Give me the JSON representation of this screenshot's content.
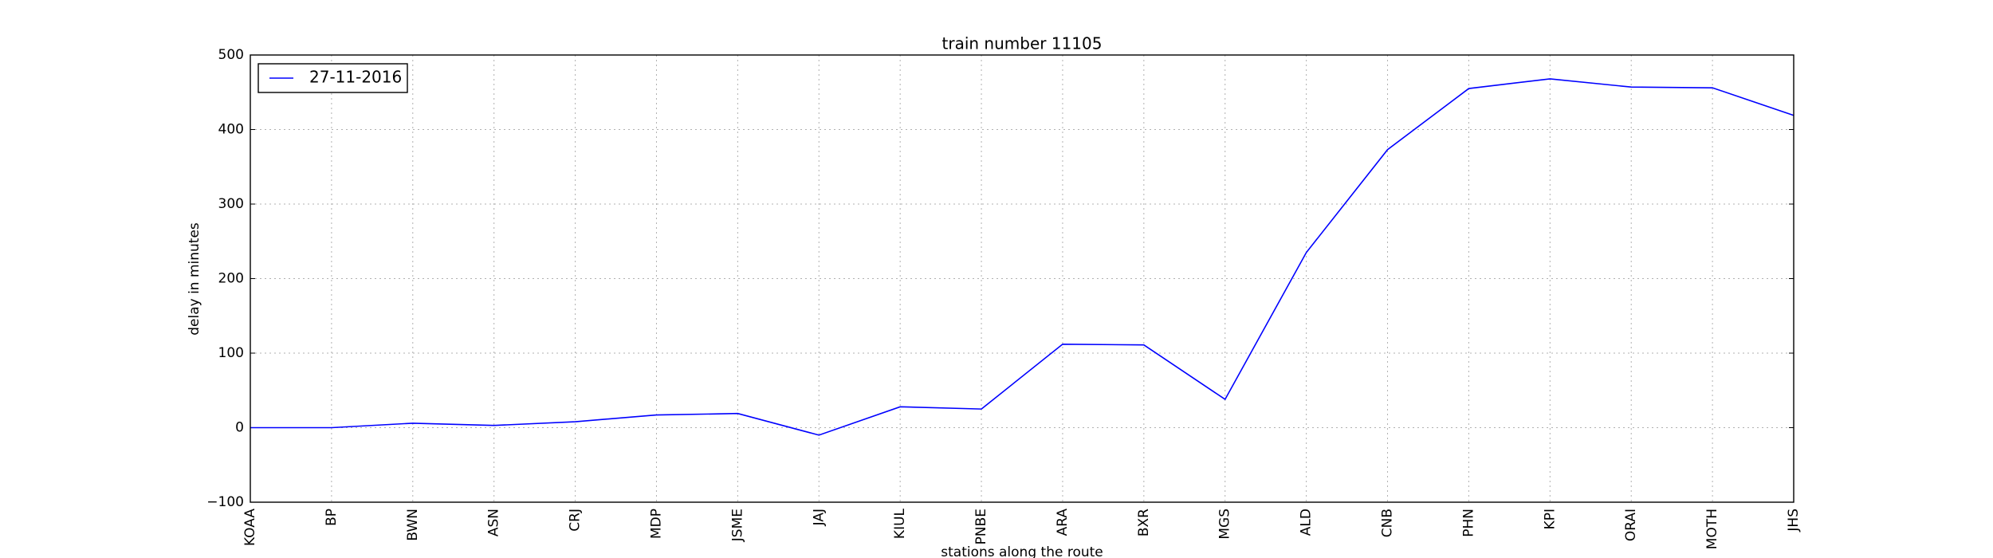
{
  "chart_data": {
    "type": "line",
    "title": "train number 11105",
    "xlabel": "stations along the route",
    "ylabel": "delay in minutes",
    "categories": [
      "KOAA",
      "BP",
      "BWN",
      "ASN",
      "CRJ",
      "MDP",
      "JSME",
      "JAJ",
      "KIUL",
      "PNBE",
      "ARA",
      "BXR",
      "MGS",
      "ALD",
      "CNB",
      "PHN",
      "KPI",
      "ORAI",
      "MOTH",
      "JHS"
    ],
    "series": [
      {
        "name": "27-11-2016",
        "color": "#0000ff",
        "values": [
          0,
          0,
          6,
          3,
          8,
          17,
          19,
          -10,
          28,
          25,
          112,
          111,
          38,
          235,
          373,
          455,
          468,
          457,
          456,
          419
        ]
      }
    ],
    "ylim": [
      -100,
      500
    ],
    "yticks": [
      {
        "value": -100,
        "label": "−100"
      },
      0,
      100,
      200,
      300,
      400,
      500
    ],
    "grid": true,
    "legend": "upper left"
  }
}
